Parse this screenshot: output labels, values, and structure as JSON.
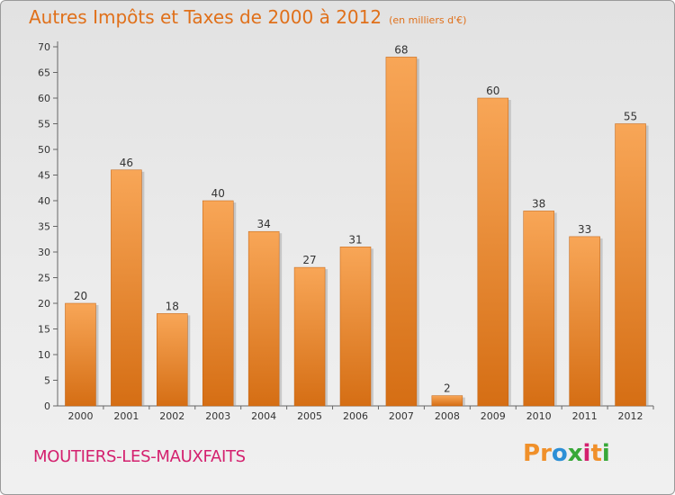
{
  "chart_data": {
    "type": "bar",
    "title": "Autres Impôts et Taxes de 2000 à 2012",
    "subtitle": "(en milliers d'€)",
    "categories": [
      "2000",
      "2001",
      "2002",
      "2003",
      "2004",
      "2005",
      "2006",
      "2007",
      "2008",
      "2009",
      "2010",
      "2011",
      "2012"
    ],
    "values": [
      20,
      46,
      18,
      40,
      34,
      27,
      31,
      68,
      2,
      60,
      38,
      33,
      55
    ],
    "ylim": [
      0,
      70
    ],
    "yticks": [
      0,
      5,
      10,
      15,
      20,
      25,
      30,
      35,
      40,
      45,
      50,
      55,
      60,
      65,
      70
    ],
    "grid": false,
    "colors": {
      "bar_light": "#f8a657",
      "bar_dark": "#d56e14",
      "title": "#e0701a"
    }
  },
  "commune": "MOUTIERS-LES-MAUXFAITS",
  "logo": {
    "letters": [
      "P",
      "r",
      "o",
      "x",
      "i",
      "t",
      "i"
    ],
    "colors": [
      "#f0902a",
      "#f0902a",
      "#2c8fd6",
      "#38a838",
      "#d4206e",
      "#f0902a",
      "#38a838"
    ]
  }
}
